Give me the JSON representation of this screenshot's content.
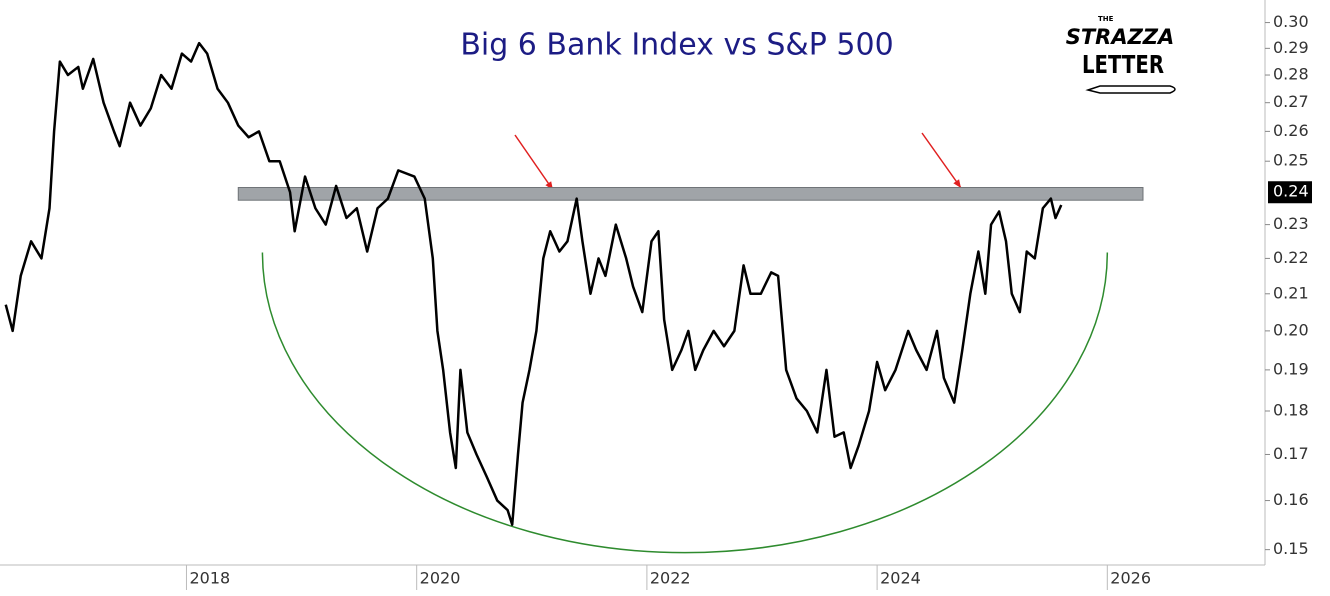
{
  "chart_data": {
    "type": "line",
    "title": "Big 6 Bank Index vs S&P 500",
    "logo": {
      "small": "THE",
      "line1": "STRAZZA",
      "line2": "LETTER"
    },
    "log_scale": true,
    "grid": false,
    "color": "#000000",
    "x": [
      2016.43,
      2016.49,
      2016.56,
      2016.65,
      2016.74,
      2016.81,
      2016.85,
      2016.9,
      2016.97,
      2017.06,
      2017.1,
      2017.19,
      2017.28,
      2017.37,
      2017.42,
      2017.51,
      2017.6,
      2017.69,
      2017.78,
      2017.87,
      2017.96,
      2018.04,
      2018.11,
      2018.18,
      2018.27,
      2018.36,
      2018.45,
      2018.54,
      2018.63,
      2018.72,
      2018.81,
      2018.9,
      2018.94,
      2019.03,
      2019.12,
      2019.21,
      2019.3,
      2019.39,
      2019.48,
      2019.57,
      2019.66,
      2019.75,
      2019.84,
      2019.98,
      2020.07,
      2020.14,
      2020.18,
      2020.23,
      2020.29,
      2020.34,
      2020.38,
      2020.44,
      2020.52,
      2020.61,
      2020.7,
      2020.79,
      2020.83,
      2020.88,
      2020.92,
      2020.98,
      2021.04,
      2021.1,
      2021.16,
      2021.24,
      2021.31,
      2021.39,
      2021.44,
      2021.51,
      2021.58,
      2021.64,
      2021.73,
      2021.82,
      2021.88,
      2021.96,
      2022.04,
      2022.1,
      2022.15,
      2022.22,
      2022.3,
      2022.36,
      2022.42,
      2022.49,
      2022.58,
      2022.67,
      2022.76,
      2022.84,
      2022.9,
      2022.99,
      2023.08,
      2023.14,
      2023.21,
      2023.3,
      2023.39,
      2023.48,
      2023.56,
      2023.63,
      2023.71,
      2023.77,
      2023.84,
      2023.93,
      2024.0,
      2024.07,
      2024.16,
      2024.27,
      2024.34,
      2024.43,
      2024.52,
      2024.58,
      2024.67,
      2024.74,
      2024.81,
      2024.88,
      2024.94,
      2024.99,
      2025.06,
      2025.12,
      2025.17,
      2025.24,
      2025.3,
      2025.37,
      2025.44,
      2025.51,
      2025.55,
      2025.6
    ],
    "values": [
      0.207,
      0.2,
      0.215,
      0.225,
      0.22,
      0.235,
      0.26,
      0.285,
      0.28,
      0.283,
      0.275,
      0.286,
      0.27,
      0.26,
      0.255,
      0.27,
      0.262,
      0.268,
      0.28,
      0.275,
      0.288,
      0.285,
      0.292,
      0.288,
      0.275,
      0.27,
      0.262,
      0.258,
      0.26,
      0.25,
      0.25,
      0.24,
      0.228,
      0.245,
      0.235,
      0.23,
      0.242,
      0.232,
      0.235,
      0.222,
      0.235,
      0.238,
      0.247,
      0.245,
      0.238,
      0.22,
      0.2,
      0.19,
      0.175,
      0.167,
      0.19,
      0.175,
      0.17,
      0.165,
      0.16,
      0.158,
      0.155,
      0.17,
      0.182,
      0.19,
      0.2,
      0.22,
      0.228,
      0.222,
      0.225,
      0.238,
      0.225,
      0.21,
      0.22,
      0.215,
      0.23,
      0.22,
      0.212,
      0.205,
      0.225,
      0.228,
      0.203,
      0.19,
      0.195,
      0.2,
      0.19,
      0.195,
      0.2,
      0.196,
      0.2,
      0.218,
      0.21,
      0.21,
      0.216,
      0.215,
      0.19,
      0.183,
      0.18,
      0.175,
      0.19,
      0.174,
      0.175,
      0.167,
      0.172,
      0.18,
      0.192,
      0.185,
      0.19,
      0.2,
      0.195,
      0.19,
      0.2,
      0.188,
      0.182,
      0.195,
      0.21,
      0.222,
      0.21,
      0.23,
      0.234,
      0.225,
      0.21,
      0.205,
      0.222,
      0.22,
      0.235,
      0.238,
      0.232,
      0.236
    ],
    "last_value": 0.24,
    "band": {
      "y": [
        0.2375,
        0.2415
      ],
      "x": [
        2018.45,
        2026.31
      ],
      "color": "#a0a4a8"
    },
    "arc": {
      "x": [
        2018.66,
        2026.0
      ],
      "bottom": 0.1494,
      "top": 0.2217,
      "color": "#2e8b2e"
    },
    "annotation_color": "#e02020",
    "xlim": [
      2016.38,
      2027.37
    ],
    "xticks": [
      2018,
      2020,
      2022,
      2024,
      2026
    ],
    "ylim": [
      0.147,
      0.305
    ],
    "yticks": [
      {
        "value": 0.15,
        "label": "0.15"
      },
      0.16,
      0.17,
      0.18,
      0.19,
      {
        "value": 0.2,
        "label": "0.20"
      },
      0.21,
      0.22,
      0.23,
      0.25,
      0.26,
      0.27,
      0.28,
      0.29,
      {
        "value": 0.3,
        "label": "0.30"
      }
    ]
  }
}
